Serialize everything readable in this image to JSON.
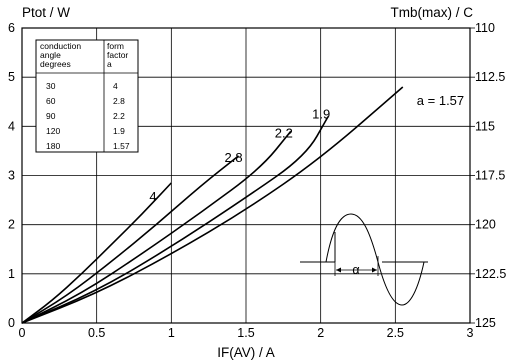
{
  "chart_data": {
    "type": "line",
    "title": "",
    "xlabel": "IF(AV) / A",
    "ylabel": "Ptot / W",
    "y2label": "Tmb(max) / C",
    "xlim": [
      0,
      3
    ],
    "ylim": [
      0,
      6
    ],
    "grid": true,
    "x_ticks": [
      "0",
      "0.5",
      "1",
      "1.5",
      "2",
      "2.5",
      "3"
    ],
    "y_ticks": [
      "0",
      "1",
      "2",
      "3",
      "4",
      "5",
      "6"
    ],
    "y2_ticks": [
      "125",
      "122.5",
      "120",
      "117.5",
      "115",
      "112.5",
      "110"
    ],
    "series": [
      {
        "name": "4",
        "x": [
          0,
          0.2,
          0.4,
          0.6,
          0.8,
          1.0
        ],
        "y": [
          0,
          0.45,
          1.0,
          1.6,
          2.2,
          2.85
        ]
      },
      {
        "name": "2.8",
        "x": [
          0,
          0.3,
          0.6,
          0.9,
          1.2,
          1.45
        ],
        "y": [
          0,
          0.55,
          1.25,
          2.0,
          2.8,
          3.4
        ]
      },
      {
        "name": "2.2",
        "x": [
          0,
          0.4,
          0.8,
          1.2,
          1.6,
          1.8
        ],
        "y": [
          0,
          0.6,
          1.4,
          2.25,
          3.15,
          3.9
        ]
      },
      {
        "name": "1.9",
        "x": [
          0,
          0.5,
          1.0,
          1.5,
          1.9,
          2.05
        ],
        "y": [
          0,
          0.65,
          1.55,
          2.55,
          3.4,
          4.2
        ]
      },
      {
        "name": "1.57",
        "x": [
          0,
          0.5,
          1.0,
          1.5,
          2.0,
          2.55
        ],
        "y": [
          0,
          0.6,
          1.4,
          2.3,
          3.35,
          4.8
        ]
      }
    ],
    "curve_labels": [
      "4",
      "2.8",
      "2.2",
      "1.9",
      "a = 1.57"
    ],
    "annotations": [
      "α"
    ]
  },
  "table": {
    "headers": [
      "conduction angle degrees",
      "form factor a"
    ],
    "header_lines_left": [
      "conduction",
      "angle",
      "degrees"
    ],
    "header_lines_right": [
      "form",
      "factor",
      "a"
    ],
    "rows": [
      [
        "30",
        "4"
      ],
      [
        "60",
        "2.8"
      ],
      [
        "90",
        "2.2"
      ],
      [
        "120",
        "1.9"
      ],
      [
        "180",
        "1.57"
      ]
    ]
  }
}
